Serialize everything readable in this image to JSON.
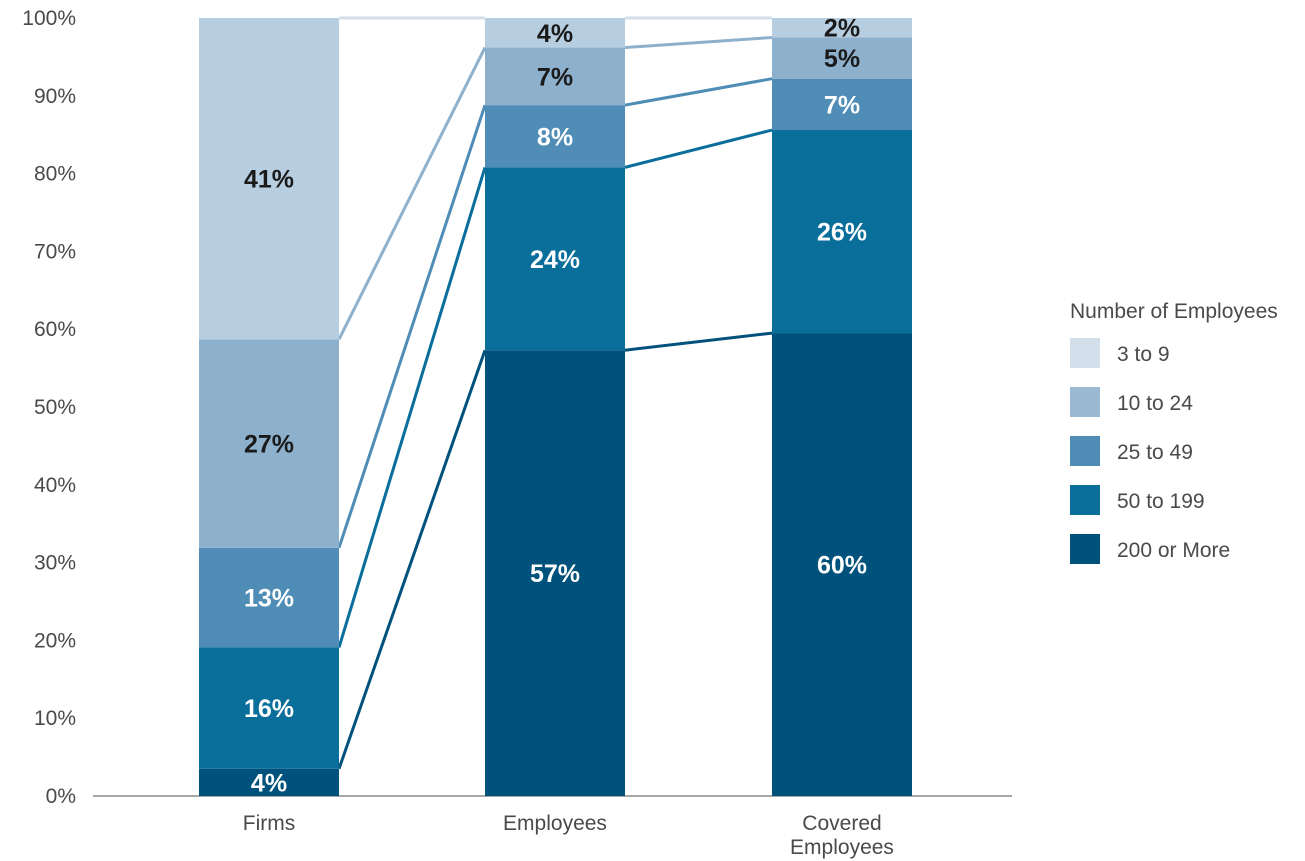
{
  "chart_data": {
    "type": "bar",
    "stacked": true,
    "categories": [
      "Firms",
      "Employees",
      "Covered Employees"
    ],
    "series": [
      {
        "name": "200 or More",
        "color": "#00527c",
        "values": [
          3.5,
          57.3,
          59.5
        ],
        "labels": [
          "4%",
          "57%",
          "60%"
        ],
        "label_color": "#ffffff"
      },
      {
        "name": "50 to 199",
        "color": "#0a6e9b",
        "values": [
          15.6,
          23.5,
          26.1
        ],
        "labels": [
          "16%",
          "24%",
          "26%"
        ],
        "label_color": "#ffffff"
      },
      {
        "name": "25 to 49",
        "color": "#4f8db6",
        "values": [
          12.8,
          8.0,
          6.6
        ],
        "labels": [
          "13%",
          "8%",
          "7%"
        ],
        "label_color": "#ffffff"
      },
      {
        "name": "10 to 24",
        "color": "#8db0cd",
        "values": [
          26.8,
          7.4,
          5.3
        ],
        "labels": [
          "27%",
          "7%",
          "5%"
        ],
        "label_color": "#1a1a1a"
      },
      {
        "name": "3 to 9",
        "color": "#b7cde0",
        "values": [
          41.3,
          3.8,
          2.5
        ],
        "labels": [
          "41%",
          "4%",
          "2%"
        ],
        "label_color": "#1a1a1a"
      }
    ],
    "y_ticks": [
      "0%",
      "10%",
      "20%",
      "30%",
      "40%",
      "50%",
      "60%",
      "70%",
      "80%",
      "90%",
      "100%"
    ],
    "ylim": [
      0,
      100
    ],
    "legend": {
      "title": "Number of Employees",
      "placement": "right",
      "entries": [
        {
          "name": "3 to 9",
          "color": "#d3dfea"
        },
        {
          "name": "10 to 24",
          "color": "#9cb9d3"
        },
        {
          "name": "25 to 49",
          "color": "#4f8db6"
        },
        {
          "name": "50 to 199",
          "color": "#0a6e9b"
        },
        {
          "name": "200 or More",
          "color": "#00527c"
        }
      ]
    },
    "connector_lines": true
  }
}
